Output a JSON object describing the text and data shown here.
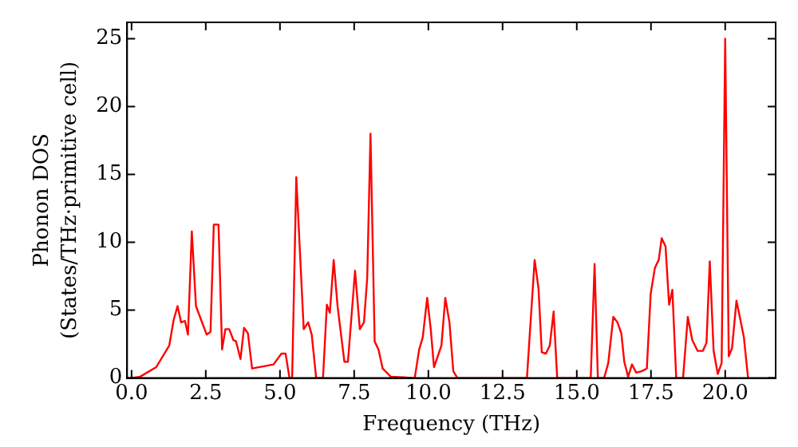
{
  "chart_data": {
    "type": "line",
    "xlabel": "Frequency (THz)",
    "ylabel": "Phonon DOS\n(States/THz·primitive cell)",
    "xlim": [
      -0.15,
      21.7
    ],
    "ylim": [
      0,
      26.2
    ],
    "xticks": [
      {
        "value": 0,
        "label": "0.0"
      },
      {
        "value": 2.5,
        "label": "2.5"
      },
      {
        "value": 5,
        "label": "5.0"
      },
      {
        "value": 7.5,
        "label": "7.5"
      },
      {
        "value": 10,
        "label": "10.0"
      },
      {
        "value": 12.5,
        "label": "12.5"
      },
      {
        "value": 15,
        "label": "15.0"
      },
      {
        "value": 17.5,
        "label": "17.5"
      },
      {
        "value": 20,
        "label": "20.0"
      }
    ],
    "yticks": [
      0,
      5,
      10,
      15,
      20,
      25
    ],
    "grid": false,
    "legend": false,
    "marker": "none",
    "line_style": "solid",
    "series": [
      {
        "color": "#ff0000",
        "x": [
          0,
          0.29,
          0.83,
          1.27,
          1.42,
          1.55,
          1.67,
          1.8,
          1.9,
          2.03,
          2.17,
          2.53,
          2.66,
          2.77,
          2.93,
          3.05,
          3.16,
          3.29,
          3.43,
          3.52,
          3.67,
          3.79,
          3.92,
          4.06,
          4.78,
          5.05,
          5.19,
          5.32,
          5.41,
          5.55,
          5.8,
          5.95,
          6.07,
          6.22,
          6.45,
          6.58,
          6.68,
          6.81,
          6.94,
          7.17,
          7.29,
          7.53,
          7.69,
          7.83,
          7.94,
          8.05,
          8.19,
          8.32,
          8.46,
          8.73,
          9.54,
          9.69,
          9.81,
          9.96,
          10.08,
          10.19,
          10.44,
          10.57,
          10.71,
          10.84,
          10.98,
          13.32,
          13.58,
          13.71,
          13.82,
          13.96,
          14.09,
          14.22,
          14.34,
          15.47,
          15.6,
          15.71,
          15.92,
          16.06,
          16.23,
          16.37,
          16.5,
          16.6,
          16.73,
          16.86,
          17.0,
          17.18,
          17.36,
          17.49,
          17.63,
          17.76,
          17.86,
          17.99,
          18.11,
          18.22,
          18.35,
          18.58,
          18.74,
          18.89,
          19.07,
          19.25,
          19.37,
          19.48,
          19.61,
          19.75,
          19.88,
          20.0,
          20.12,
          20.23,
          20.38,
          20.63,
          20.77
        ],
        "values": [
          0,
          0.1,
          0.8,
          2.4,
          4.3,
          5.3,
          4.1,
          4.2,
          3.2,
          10.8,
          5.3,
          3.2,
          3.4,
          11.3,
          11.3,
          2.1,
          3.6,
          3.6,
          2.8,
          2.7,
          1.4,
          3.7,
          3.3,
          0.7,
          1.0,
          1.8,
          1.8,
          0,
          0,
          14.8,
          3.6,
          4.1,
          3.2,
          0,
          0,
          5.4,
          4.8,
          8.7,
          5.3,
          1.2,
          1.2,
          7.9,
          3.6,
          4.1,
          7.4,
          18.0,
          2.7,
          2.1,
          0.7,
          0.1,
          0,
          2.1,
          3.0,
          5.9,
          3.6,
          0.8,
          2.4,
          5.9,
          4.1,
          0.5,
          0,
          0,
          8.7,
          6.6,
          1.9,
          1.8,
          2.4,
          4.9,
          0,
          0,
          8.4,
          0,
          0,
          1.1,
          4.5,
          4.1,
          3.3,
          1.2,
          0.1,
          1.0,
          0.4,
          0.5,
          0.7,
          6.2,
          8.1,
          8.7,
          10.3,
          9.7,
          5.4,
          6.5,
          0,
          0,
          4.5,
          2.8,
          2.0,
          2.0,
          2.6,
          8.6,
          2.0,
          0.3,
          1.1,
          25.0,
          1.6,
          2.2,
          5.7,
          3.0,
          0
        ]
      }
    ]
  }
}
